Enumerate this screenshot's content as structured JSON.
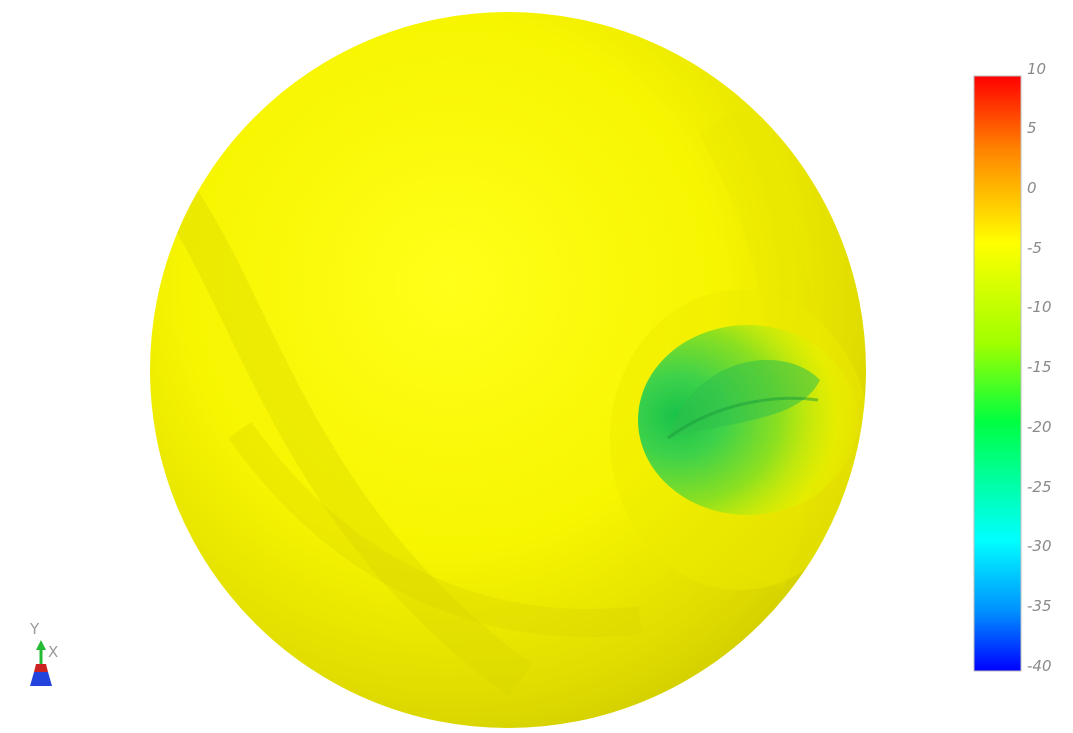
{
  "scalar_bar": {
    "range": [
      -40,
      10
    ],
    "ticks": [
      "10",
      "5",
      "0",
      "-5",
      "-10",
      "-15",
      "-20",
      "-25",
      "-30",
      "-35",
      "-40"
    ],
    "colormap": "jet",
    "colors": {
      "top": "#ff0000",
      "orange": "#ff8000",
      "yellow": "#ffff00",
      "green": "#00ff40",
      "cyan": "#00ffff",
      "blue": "#0040ff",
      "bottom": "#0000ff"
    }
  },
  "orientation_axes": {
    "labels": {
      "y": "Y",
      "x": "X"
    },
    "colors": {
      "y": "#22bb33",
      "x": "#cc2222",
      "z": "#2244dd"
    }
  },
  "surface": {
    "base_color": "#ffff00",
    "feature": "dimple-depression",
    "feature_color": "#33dd44"
  }
}
